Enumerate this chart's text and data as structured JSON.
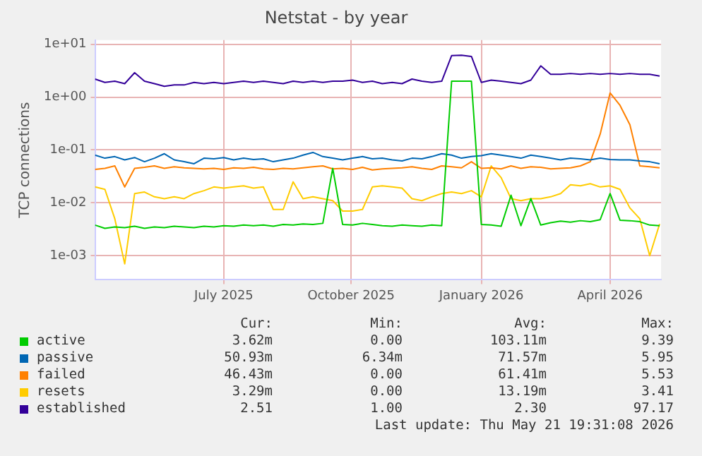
{
  "chart_data": {
    "type": "line",
    "title": "Netstat - by year",
    "ylabel": "TCP connections",
    "log": "y",
    "grid": true,
    "legend": "bottom",
    "marker": "none",
    "line_style": "solid",
    "ylim": [
      0.00035,
      12
    ],
    "yticks": [
      {
        "value": 0.001,
        "label": "1e-03"
      },
      {
        "value": 0.01,
        "label": "1e-02"
      },
      {
        "value": 0.1,
        "label": "1e-01"
      },
      {
        "value": 1,
        "label": "1e+00"
      },
      {
        "value": 10,
        "label": "1e+01"
      }
    ],
    "xlim": [
      "2025-04-16",
      "2026-05-21"
    ],
    "xticks": [
      {
        "value": "2025-07-16",
        "label": "July 2025"
      },
      {
        "value": "2025-10-14",
        "label": "October 2025"
      },
      {
        "value": "2026-01-14",
        "label": "January 2026"
      },
      {
        "value": "2026-04-15",
        "label": "April 2026"
      }
    ],
    "x": [
      "2025-04-16",
      "2025-04-23",
      "2025-04-30",
      "2025-05-07",
      "2025-05-14",
      "2025-05-21",
      "2025-05-28",
      "2025-06-04",
      "2025-06-11",
      "2025-06-18",
      "2025-06-25",
      "2025-07-02",
      "2025-07-09",
      "2025-07-16",
      "2025-07-23",
      "2025-07-30",
      "2025-08-06",
      "2025-08-13",
      "2025-08-20",
      "2025-08-27",
      "2025-09-03",
      "2025-09-10",
      "2025-09-17",
      "2025-09-24",
      "2025-10-01",
      "2025-10-08",
      "2025-10-15",
      "2025-10-22",
      "2025-10-29",
      "2025-11-05",
      "2025-11-12",
      "2025-11-19",
      "2025-11-26",
      "2025-12-03",
      "2025-12-10",
      "2025-12-17",
      "2025-12-24",
      "2025-12-31",
      "2026-01-07",
      "2026-01-14",
      "2026-01-21",
      "2026-01-28",
      "2026-02-04",
      "2026-02-11",
      "2026-02-18",
      "2026-02-25",
      "2026-03-04",
      "2026-03-11",
      "2026-03-18",
      "2026-03-25",
      "2026-04-01",
      "2026-04-08",
      "2026-04-15",
      "2026-04-22",
      "2026-04-29",
      "2026-05-06",
      "2026-05-13",
      "2026-05-20"
    ],
    "series": [
      {
        "name": "active",
        "color": "#00cc00",
        "values": [
          0.0038,
          0.0033,
          0.0035,
          0.0034,
          0.0036,
          0.0033,
          0.0035,
          0.0034,
          0.0036,
          0.0035,
          0.0034,
          0.0036,
          0.0035,
          0.0037,
          0.0036,
          0.0038,
          0.0037,
          0.0038,
          0.0036,
          0.0039,
          0.0038,
          0.004,
          0.0039,
          0.0041,
          0.045,
          0.0039,
          0.0038,
          0.0041,
          0.0039,
          0.0037,
          0.0036,
          0.0038,
          0.0037,
          0.0036,
          0.0038,
          0.0037,
          2.0,
          2.0,
          2.0,
          0.0039,
          0.0038,
          0.0036,
          0.014,
          0.0037,
          0.012,
          0.0038,
          0.0042,
          0.0045,
          0.0043,
          0.0046,
          0.0044,
          0.0048,
          0.015,
          0.0047,
          0.0046,
          0.0044,
          0.0038,
          0.0037
        ]
      },
      {
        "name": "passive",
        "color": "#0066b3",
        "values": [
          0.08,
          0.07,
          0.075,
          0.065,
          0.072,
          0.06,
          0.07,
          0.085,
          0.065,
          0.06,
          0.055,
          0.07,
          0.068,
          0.072,
          0.065,
          0.07,
          0.066,
          0.068,
          0.06,
          0.065,
          0.07,
          0.08,
          0.09,
          0.075,
          0.07,
          0.065,
          0.07,
          0.075,
          0.068,
          0.07,
          0.065,
          0.062,
          0.07,
          0.068,
          0.075,
          0.085,
          0.08,
          0.07,
          0.075,
          0.078,
          0.085,
          0.08,
          0.075,
          0.07,
          0.08,
          0.075,
          0.07,
          0.065,
          0.07,
          0.068,
          0.065,
          0.07,
          0.066,
          0.065,
          0.065,
          0.062,
          0.06,
          0.055
        ]
      },
      {
        "name": "failed",
        "color": "#ff8000",
        "values": [
          0.043,
          0.045,
          0.05,
          0.02,
          0.045,
          0.047,
          0.05,
          0.045,
          0.048,
          0.046,
          0.045,
          0.044,
          0.045,
          0.043,
          0.046,
          0.045,
          0.047,
          0.044,
          0.043,
          0.045,
          0.044,
          0.046,
          0.048,
          0.05,
          0.044,
          0.045,
          0.043,
          0.047,
          0.042,
          0.044,
          0.045,
          0.046,
          0.048,
          0.045,
          0.043,
          0.05,
          0.048,
          0.046,
          0.06,
          0.045,
          0.046,
          0.044,
          0.05,
          0.045,
          0.048,
          0.047,
          0.044,
          0.045,
          0.046,
          0.05,
          0.06,
          0.2,
          1.2,
          0.7,
          0.3,
          0.05,
          0.048,
          0.046
        ]
      },
      {
        "name": "resets",
        "color": "#ffcc00",
        "values": [
          0.02,
          0.018,
          0.005,
          0.0007,
          0.015,
          0.016,
          0.013,
          0.012,
          0.013,
          0.012,
          0.015,
          0.017,
          0.02,
          0.019,
          0.02,
          0.021,
          0.019,
          0.02,
          0.0075,
          0.0075,
          0.025,
          0.012,
          0.013,
          0.012,
          0.011,
          0.007,
          0.007,
          0.0075,
          0.02,
          0.021,
          0.02,
          0.019,
          0.012,
          0.011,
          0.013,
          0.015,
          0.016,
          0.015,
          0.017,
          0.013,
          0.05,
          0.03,
          0.012,
          0.011,
          0.012,
          0.012,
          0.013,
          0.015,
          0.022,
          0.021,
          0.023,
          0.02,
          0.021,
          0.018,
          0.008,
          0.005,
          0.001,
          0.004
        ]
      },
      {
        "name": "established",
        "color": "#330099",
        "values": [
          2.2,
          1.9,
          2.0,
          1.8,
          2.9,
          2.0,
          1.8,
          1.6,
          1.7,
          1.7,
          1.9,
          1.8,
          1.9,
          1.8,
          1.9,
          2.0,
          1.9,
          2.0,
          1.9,
          1.8,
          2.0,
          1.9,
          2.0,
          1.9,
          2.0,
          2.0,
          2.1,
          1.9,
          2.0,
          1.8,
          1.9,
          1.8,
          2.2,
          2.0,
          1.9,
          2.0,
          6.1,
          6.2,
          5.9,
          1.9,
          2.1,
          2.0,
          1.9,
          1.8,
          2.1,
          3.9,
          2.7,
          2.7,
          2.8,
          2.7,
          2.8,
          2.7,
          2.8,
          2.7,
          2.8,
          2.7,
          2.7,
          2.5
        ]
      }
    ],
    "annotations": [
      "Cur:",
      "Min:",
      "Avg:",
      "Max:",
      "3.62m",
      "0.00",
      "103.11m",
      "9.39",
      "50.93m",
      "6.34m",
      "71.57m",
      "5.95",
      "46.43m",
      "0.00",
      "61.41m",
      "5.53",
      "3.29m",
      "0.00",
      "13.19m",
      "3.41",
      "2.51",
      "1.00",
      "2.30",
      "97.17",
      "Last update: Thu May 21 19:31:08 2026"
    ]
  }
}
